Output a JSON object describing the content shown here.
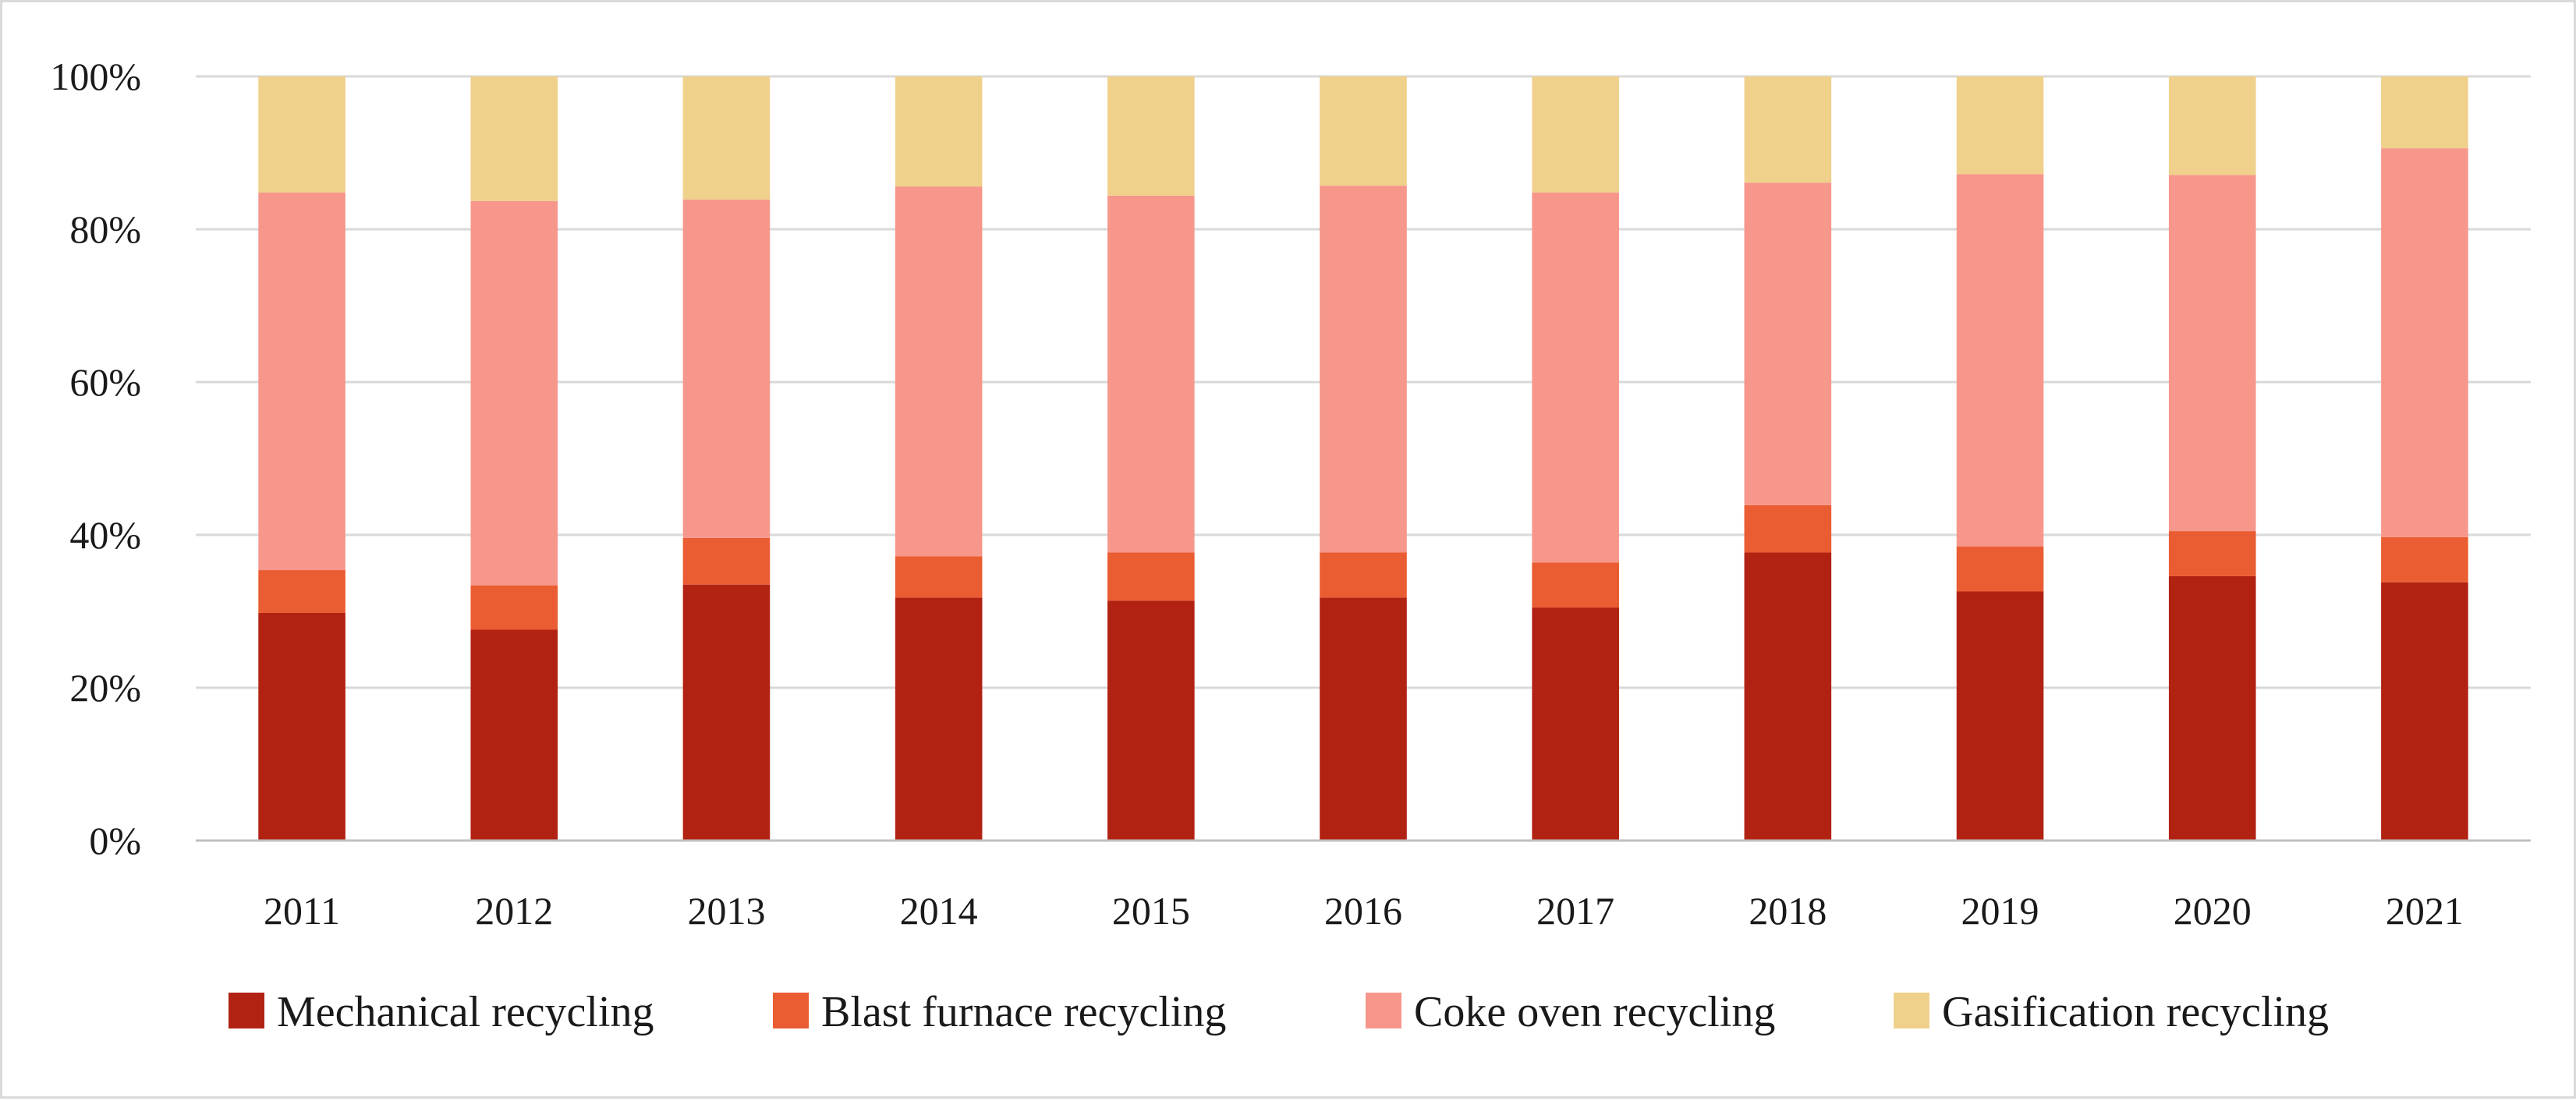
{
  "chart_data": {
    "type": "bar",
    "stacked": true,
    "normalized": true,
    "categories": [
      "2011",
      "2012",
      "2013",
      "2014",
      "2015",
      "2016",
      "2017",
      "2018",
      "2019",
      "2020",
      "2021"
    ],
    "series": [
      {
        "name": "Mechanical recycling",
        "color": "#b22213",
        "values": [
          29.8,
          27.6,
          33.5,
          31.8,
          31.4,
          31.8,
          30.5,
          37.7,
          32.6,
          34.6,
          33.8
        ]
      },
      {
        "name": "Blast furnace recycling",
        "color": "#ea5c31",
        "values": [
          5.6,
          5.8,
          6.1,
          5.4,
          6.3,
          5.9,
          5.9,
          6.2,
          5.9,
          5.9,
          5.9
        ]
      },
      {
        "name": "Coke oven recycling",
        "color": "#f7978b",
        "values": [
          49.4,
          50.3,
          44.3,
          48.4,
          46.7,
          48.0,
          48.4,
          42.2,
          48.7,
          46.6,
          50.9
        ]
      },
      {
        "name": "Gasification recycling",
        "color": "#efd18c",
        "values": [
          15.2,
          16.3,
          16.1,
          14.4,
          15.6,
          14.3,
          15.2,
          13.9,
          12.8,
          12.9,
          9.4
        ]
      }
    ],
    "y_ticks": [
      "0%",
      "20%",
      "40%",
      "60%",
      "80%",
      "100%"
    ],
    "ylim": [
      0,
      100
    ],
    "grid": true,
    "legend": "bottom",
    "title": "",
    "xlabel": "",
    "ylabel": ""
  }
}
